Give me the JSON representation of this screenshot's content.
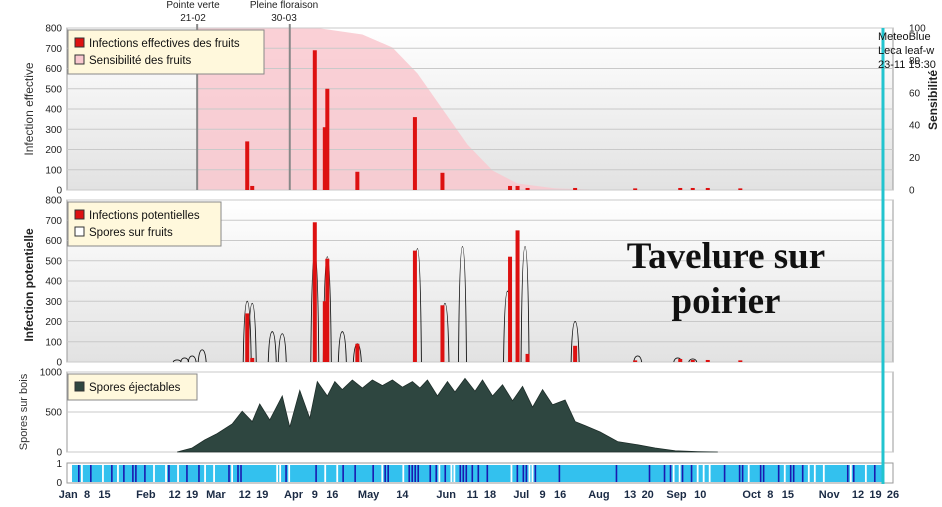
{
  "title": {
    "line1": "Tavelure sur",
    "line2": "poirier"
  },
  "source": {
    "line1": "MeteoBlue",
    "line2": "Leca leaf-w",
    "line3": "23-11 15:30"
  },
  "markers": [
    {
      "label": "Pointe verte",
      "date": "21-02",
      "day": 52
    },
    {
      "label": "Pleine floraison",
      "date": "30-03",
      "day": 89
    }
  ],
  "colors": {
    "infection": "#dd1111",
    "sensitivity": "#f9c8cf",
    "spores": "#2e4640",
    "strip_light": "#33c1ee",
    "strip_dark": "#1a1ab0",
    "current": "#22c4cf"
  },
  "x_axis": {
    "labels": [
      {
        "t": "Jan",
        "d": 0.5
      },
      {
        "t": "8",
        "d": 8
      },
      {
        "t": "15",
        "d": 15
      },
      {
        "t": "Feb",
        "d": 31.5
      },
      {
        "t": "12",
        "d": 43
      },
      {
        "t": "19",
        "d": 50
      },
      {
        "t": "Mar",
        "d": 59.5
      },
      {
        "t": "12",
        "d": 71
      },
      {
        "t": "19",
        "d": 78
      },
      {
        "t": "Apr",
        "d": 90.5
      },
      {
        "t": "9",
        "d": 99
      },
      {
        "t": "16",
        "d": 106
      },
      {
        "t": "May",
        "d": 120.5
      },
      {
        "t": "14",
        "d": 134
      },
      {
        "t": "Jun",
        "d": 151.5
      },
      {
        "t": "11",
        "d": 162
      },
      {
        "t": "18",
        "d": 169
      },
      {
        "t": "Jul",
        "d": 181.5
      },
      {
        "t": "9",
        "d": 190
      },
      {
        "t": "16",
        "d": 197
      },
      {
        "t": "Aug",
        "d": 212.5
      },
      {
        "t": "13",
        "d": 225
      },
      {
        "t": "20",
        "d": 232
      },
      {
        "t": "Sep",
        "d": 243.5
      },
      {
        "t": "10",
        "d": 253
      },
      {
        "t": "Oct",
        "d": 273.5
      },
      {
        "t": "8",
        "d": 281
      },
      {
        "t": "15",
        "d": 288
      },
      {
        "t": "Nov",
        "d": 304.5
      },
      {
        "t": "12",
        "d": 316
      },
      {
        "t": "19",
        "d": 323
      },
      {
        "t": "26",
        "d": 330
      }
    ]
  },
  "chart_data": [
    {
      "type": "bar",
      "ylabel": "Infection effective",
      "y2label": "Sensibilité",
      "ylim": [
        0,
        800
      ],
      "yticks": [
        0,
        100,
        200,
        300,
        400,
        500,
        600,
        700,
        800
      ],
      "y2lim": [
        0,
        100
      ],
      "y2ticks": [
        0,
        20,
        40,
        60,
        80,
        100
      ],
      "legend": [
        "Infections effectives des fruits",
        "Sensibilité des fruits"
      ],
      "legend_position": "top-left",
      "current_day": 326,
      "sensitivity_curve": [
        [
          52,
          100
        ],
        [
          100,
          100
        ],
        [
          118,
          96
        ],
        [
          130,
          88
        ],
        [
          140,
          72
        ],
        [
          150,
          50
        ],
        [
          160,
          28
        ],
        [
          170,
          12
        ],
        [
          180,
          4
        ],
        [
          195,
          1
        ],
        [
          215,
          0
        ]
      ],
      "series": [
        {
          "name": "Infections effectives des fruits",
          "points": [
            [
              72,
              240
            ],
            [
              74,
              20
            ],
            [
              99,
              690
            ],
            [
              103,
              310
            ],
            [
              104,
              500
            ],
            [
              116,
              90
            ],
            [
              139,
              360
            ],
            [
              150,
              85
            ],
            [
              177,
              20
            ],
            [
              180,
              20
            ],
            [
              184,
              10
            ],
            [
              203,
              10
            ],
            [
              227,
              8
            ],
            [
              245,
              10
            ],
            [
              250,
              10
            ],
            [
              256,
              10
            ],
            [
              269,
              8
            ]
          ]
        }
      ]
    },
    {
      "type": "bar",
      "ylabel": "Infection potentielle",
      "ylim": [
        0,
        800
      ],
      "yticks": [
        0,
        100,
        200,
        300,
        400,
        500,
        600,
        700,
        800
      ],
      "legend": [
        "Infections potentielles",
        "Spores sur fruits"
      ],
      "legend_position": "top-left",
      "series": [
        {
          "name": "Infections potentielles",
          "points": [
            [
              72,
              240
            ],
            [
              74,
              20
            ],
            [
              99,
              690
            ],
            [
              103,
              300
            ],
            [
              104,
              510
            ],
            [
              116,
              90
            ],
            [
              139,
              550
            ],
            [
              150,
              280
            ],
            [
              177,
              520
            ],
            [
              180,
              650
            ],
            [
              184,
              40
            ],
            [
              203,
              80
            ],
            [
              227,
              8
            ],
            [
              245,
              15
            ],
            [
              250,
              10
            ],
            [
              256,
              10
            ],
            [
              269,
              8
            ]
          ]
        },
        {
          "name": "Spores sur fruits",
          "points": [
            [
              44,
              10
            ],
            [
              47,
              20
            ],
            [
              50,
              30
            ],
            [
              54,
              60
            ],
            [
              72,
              300
            ],
            [
              74,
              290
            ],
            [
              82,
              150
            ],
            [
              86,
              140
            ],
            [
              99,
              540
            ],
            [
              104,
              520
            ],
            [
              110,
              150
            ],
            [
              116,
              90
            ],
            [
              140,
              560
            ],
            [
              151,
              290
            ],
            [
              158,
              570
            ],
            [
              176,
              350
            ],
            [
              183,
              570
            ],
            [
              203,
              200
            ],
            [
              228,
              30
            ],
            [
              244,
              20
            ],
            [
              250,
              15
            ]
          ]
        }
      ]
    },
    {
      "type": "area",
      "ylabel": "Spores sur bois",
      "ylim": [
        0,
        1000
      ],
      "yticks": [
        0,
        500,
        1000
      ],
      "legend": [
        "Spores éjectables"
      ],
      "legend_position": "top-left",
      "series": [
        {
          "name": "Spores éjectables",
          "points": [
            [
              44,
              0
            ],
            [
              50,
              50
            ],
            [
              55,
              150
            ],
            [
              60,
              230
            ],
            [
              66,
              350
            ],
            [
              70,
              510
            ],
            [
              74,
              380
            ],
            [
              77,
              600
            ],
            [
              81,
              400
            ],
            [
              86,
              700
            ],
            [
              89,
              310
            ],
            [
              93,
              770
            ],
            [
              97,
              420
            ],
            [
              100,
              880
            ],
            [
              104,
              700
            ],
            [
              107,
              880
            ],
            [
              110,
              780
            ],
            [
              114,
              900
            ],
            [
              118,
              800
            ],
            [
              122,
              900
            ],
            [
              126,
              830
            ],
            [
              130,
              900
            ],
            [
              134,
              810
            ],
            [
              138,
              880
            ],
            [
              141,
              800
            ],
            [
              144,
              900
            ],
            [
              148,
              700
            ],
            [
              152,
              880
            ],
            [
              155,
              750
            ],
            [
              159,
              920
            ],
            [
              163,
              760
            ],
            [
              166,
              900
            ],
            [
              170,
              700
            ],
            [
              174,
              840
            ],
            [
              178,
              640
            ],
            [
              182,
              820
            ],
            [
              186,
              560
            ],
            [
              190,
              780
            ],
            [
              194,
              590
            ],
            [
              199,
              650
            ],
            [
              203,
              380
            ],
            [
              207,
              330
            ],
            [
              213,
              250
            ],
            [
              220,
              130
            ],
            [
              228,
              90
            ],
            [
              235,
              50
            ],
            [
              243,
              15
            ],
            [
              252,
              5
            ],
            [
              260,
              0
            ]
          ]
        }
      ]
    }
  ],
  "strip": {
    "yticks": [
      0,
      1
    ]
  }
}
